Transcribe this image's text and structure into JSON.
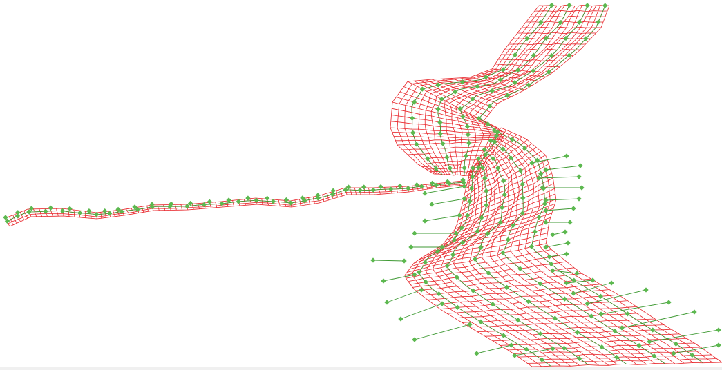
{
  "scene": {
    "type": "computational-mesh",
    "background_color": "#ffffff",
    "mesh_line_color": "#e8262b",
    "control_line_color": "#3f9a34",
    "control_point_color": "#5cb84f",
    "segments": [
      {
        "id": "upstream-channel",
        "shape": "narrow-winding"
      },
      {
        "id": "northern-channel",
        "shape": "wide-s-bend"
      },
      {
        "id": "southern-channel",
        "shape": "wide-curved"
      }
    ]
  }
}
